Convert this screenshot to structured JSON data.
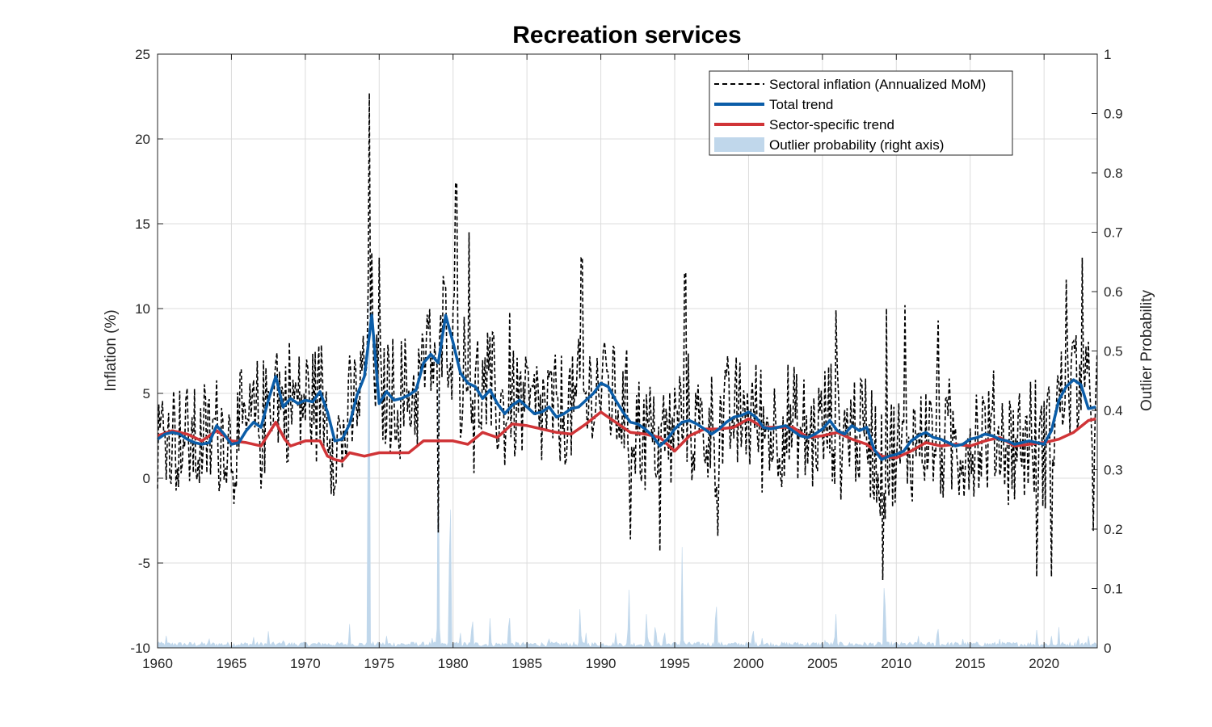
{
  "chart_data": {
    "type": "line",
    "title": "Recreation services",
    "ylabel": "Inflation (%)",
    "y2label": "Outlier Probability",
    "xlim": [
      1960,
      2023.6
    ],
    "ylim": [
      -10,
      25
    ],
    "y2lim": [
      0,
      1
    ],
    "xticks": [
      1960,
      1965,
      1970,
      1975,
      1980,
      1985,
      1990,
      1995,
      2000,
      2005,
      2010,
      2015,
      2020
    ],
    "yticks": [
      -10,
      -5,
      0,
      5,
      10,
      15,
      20,
      25
    ],
    "y2ticks": [
      0,
      0.1,
      0.2,
      0.3,
      0.4,
      0.5,
      0.6,
      0.7,
      0.8,
      0.9,
      1
    ],
    "grid": true,
    "legend_position": "top-right",
    "legend": [
      {
        "key": "sectoral",
        "label": "Sectoral inflation (Annualized MoM)"
      },
      {
        "key": "total",
        "label": "Total trend"
      },
      {
        "key": "sector",
        "label": "Sector-specific trend"
      },
      {
        "key": "outlier",
        "label": "Outlier probability (right axis)"
      }
    ],
    "colors": {
      "sectoral": "#000000",
      "total": "#0b5da8",
      "sector": "#d03437",
      "outlier": "#c0d7eb",
      "grid": "#dcdcdc",
      "axis": "#262626"
    },
    "series": [
      {
        "key": "total",
        "name": "Total trend",
        "x": [
          1960,
          1960.5,
          1961,
          1961.5,
          1962,
          1962.5,
          1963,
          1963.5,
          1964,
          1964.5,
          1965,
          1965.5,
          1966,
          1966.5,
          1967,
          1967.5,
          1968,
          1968.5,
          1969,
          1969.5,
          1970,
          1970.5,
          1971,
          1971.5,
          1972,
          1972.5,
          1973,
          1973.5,
          1974,
          1974.5,
          1975,
          1975.5,
          1976,
          1976.5,
          1977,
          1977.5,
          1978,
          1978.5,
          1979,
          1979.5,
          1980,
          1980.5,
          1981,
          1981.5,
          1982,
          1982.5,
          1983,
          1983.5,
          1984,
          1984.5,
          1985,
          1985.5,
          1986,
          1986.5,
          1987,
          1987.5,
          1988,
          1988.5,
          1989,
          1989.5,
          1990,
          1990.5,
          1991,
          1991.5,
          1992,
          1992.5,
          1993,
          1993.5,
          1994,
          1994.5,
          1995,
          1995.5,
          1996,
          1996.5,
          1997,
          1997.5,
          1998,
          1998.5,
          1999,
          1999.5,
          2000,
          2000.5,
          2001,
          2001.5,
          2002,
          2002.5,
          2003,
          2003.5,
          2004,
          2004.5,
          2005,
          2005.5,
          2006,
          2006.5,
          2007,
          2007.5,
          2008,
          2008.5,
          2009,
          2009.5,
          2010,
          2010.5,
          2011,
          2011.5,
          2012,
          2012.5,
          2013,
          2013.5,
          2014,
          2014.5,
          2015,
          2015.5,
          2016,
          2016.5,
          2017,
          2017.5,
          2018,
          2018.5,
          2019,
          2019.5,
          2020,
          2020.5,
          2021,
          2021.5,
          2022,
          2022.5,
          2023,
          2023.5
        ],
        "y": [
          2.3,
          2.6,
          2.7,
          2.6,
          2.3,
          2.1,
          2.0,
          2.1,
          3.1,
          2.6,
          2.0,
          2.1,
          2.8,
          3.3,
          3.0,
          4.6,
          6.0,
          4.2,
          4.7,
          4.4,
          4.6,
          4.5,
          5.1,
          3.9,
          2.2,
          2.3,
          3.2,
          4.9,
          6.0,
          9.6,
          4.4,
          5.1,
          4.6,
          4.7,
          4.9,
          5.2,
          6.8,
          7.3,
          6.8,
          9.6,
          8.0,
          6.2,
          5.6,
          5.4,
          4.7,
          5.2,
          4.4,
          3.8,
          4.3,
          4.6,
          4.2,
          3.8,
          3.9,
          4.2,
          3.6,
          3.8,
          4.1,
          4.2,
          4.6,
          5.0,
          5.6,
          5.4,
          4.6,
          3.9,
          3.3,
          3.2,
          2.9,
          2.5,
          1.9,
          2.3,
          2.9,
          3.3,
          3.4,
          3.2,
          2.9,
          2.6,
          2.9,
          3.3,
          3.6,
          3.7,
          3.9,
          3.6,
          3.0,
          2.9,
          3.0,
          3.1,
          2.8,
          2.5,
          2.4,
          2.6,
          2.9,
          3.4,
          2.8,
          2.6,
          3.1,
          2.8,
          3.0,
          1.7,
          1.1,
          1.3,
          1.4,
          1.6,
          2.2,
          2.5,
          2.7,
          2.4,
          2.3,
          2.1,
          1.9,
          2.0,
          2.3,
          2.4,
          2.6,
          2.5,
          2.3,
          2.2,
          2.0,
          2.1,
          2.2,
          2.1,
          2.0,
          2.8,
          4.6,
          5.4,
          5.8,
          5.5,
          4.1,
          4.2
        ]
      },
      {
        "key": "sector",
        "name": "Sector-specific trend",
        "x": [
          1960,
          1961,
          1962,
          1963,
          1964,
          1965,
          1966,
          1967,
          1968,
          1968.6,
          1969,
          1970,
          1971,
          1971.5,
          1972,
          1972.5,
          1973,
          1974,
          1975,
          1976,
          1977,
          1978,
          1979,
          1980,
          1981,
          1982,
          1983,
          1984,
          1985,
          1986,
          1987,
          1988,
          1989,
          1990,
          1991,
          1992,
          1993,
          1994,
          1995,
          1996,
          1997,
          1998,
          1999,
          2000,
          2001,
          2002,
          2003,
          2004,
          2005,
          2006,
          2007,
          2008,
          2009,
          2010,
          2011,
          2012,
          2013,
          2014,
          2015,
          2016,
          2017,
          2018,
          2019,
          2020,
          2021,
          2022,
          2023,
          2023.5
        ],
        "y": [
          2.5,
          2.8,
          2.6,
          2.2,
          2.8,
          2.2,
          2.1,
          1.9,
          3.3,
          2.3,
          1.9,
          2.2,
          2.2,
          1.3,
          1.1,
          1.0,
          1.5,
          1.3,
          1.5,
          1.5,
          1.5,
          2.2,
          2.2,
          2.2,
          2.0,
          2.7,
          2.4,
          3.2,
          3.1,
          2.9,
          2.7,
          2.6,
          3.2,
          3.9,
          3.3,
          2.7,
          2.6,
          2.4,
          1.6,
          2.5,
          2.9,
          2.9,
          3.0,
          3.5,
          3.0,
          3.0,
          3.0,
          2.4,
          2.5,
          2.7,
          2.3,
          2.0,
          1.3,
          1.2,
          1.6,
          2.1,
          1.9,
          2.0,
          1.9,
          2.2,
          2.4,
          1.9,
          2.0,
          2.1,
          2.3,
          2.7,
          3.4,
          3.5
        ]
      }
    ],
    "outlier_spikes": [
      {
        "x": 1960.1,
        "y": 0.012
      },
      {
        "x": 1960.6,
        "y": 0.025
      },
      {
        "x": 1961.2,
        "y": 0.012
      },
      {
        "x": 1963.5,
        "y": 0.015
      },
      {
        "x": 1966.5,
        "y": 0.018
      },
      {
        "x": 1967.5,
        "y": 0.028
      },
      {
        "x": 1968.5,
        "y": 0.012
      },
      {
        "x": 1971.2,
        "y": 0.012
      },
      {
        "x": 1973.0,
        "y": 0.04
      },
      {
        "x": 1974.3,
        "y": 0.93
      },
      {
        "x": 1975.5,
        "y": 0.02
      },
      {
        "x": 1977.3,
        "y": 0.015
      },
      {
        "x": 1978.6,
        "y": 0.02
      },
      {
        "x": 1979.0,
        "y": 0.44
      },
      {
        "x": 1979.8,
        "y": 0.37
      },
      {
        "x": 1980.5,
        "y": 0.025
      },
      {
        "x": 1981.3,
        "y": 0.07
      },
      {
        "x": 1982.5,
        "y": 0.05
      },
      {
        "x": 1983.8,
        "y": 0.08
      },
      {
        "x": 1986.5,
        "y": 0.015
      },
      {
        "x": 1988.6,
        "y": 0.08
      },
      {
        "x": 1989.0,
        "y": 0.025
      },
      {
        "x": 1991.0,
        "y": 0.025
      },
      {
        "x": 1991.9,
        "y": 0.12
      },
      {
        "x": 1993.1,
        "y": 0.07
      },
      {
        "x": 1993.7,
        "y": 0.055
      },
      {
        "x": 1994.3,
        "y": 0.04
      },
      {
        "x": 1995.5,
        "y": 0.17
      },
      {
        "x": 1997.8,
        "y": 0.11
      },
      {
        "x": 2000.3,
        "y": 0.045
      },
      {
        "x": 2000.9,
        "y": 0.02
      },
      {
        "x": 2003.3,
        "y": 0.015
      },
      {
        "x": 2005.2,
        "y": 0.02
      },
      {
        "x": 2005.9,
        "y": 0.07
      },
      {
        "x": 2009.2,
        "y": 0.16
      },
      {
        "x": 2011.5,
        "y": 0.02
      },
      {
        "x": 2012.8,
        "y": 0.05
      },
      {
        "x": 2014.5,
        "y": 0.015
      },
      {
        "x": 2017.0,
        "y": 0.015
      },
      {
        "x": 2019.5,
        "y": 0.03
      },
      {
        "x": 2020.5,
        "y": 0.02
      },
      {
        "x": 2021.0,
        "y": 0.035
      },
      {
        "x": 2022.3,
        "y": 0.025
      },
      {
        "x": 2023.0,
        "y": 0.02
      }
    ],
    "sectoral_spikes": [
      {
        "x": 1974.3,
        "y": 22.7
      },
      {
        "x": 1975.0,
        "y": 13.0
      },
      {
        "x": 1979.0,
        "y": -3.2
      },
      {
        "x": 1980.2,
        "y": 17.4
      },
      {
        "x": 1981.1,
        "y": 14.5
      },
      {
        "x": 1981.4,
        "y": 0.3
      },
      {
        "x": 1983.8,
        "y": 9.8
      },
      {
        "x": 1988.7,
        "y": 13.0
      },
      {
        "x": 1992.0,
        "y": -3.6
      },
      {
        "x": 1994.0,
        "y": -4.3
      },
      {
        "x": 1995.7,
        "y": 12.1
      },
      {
        "x": 1997.9,
        "y": -3.4
      },
      {
        "x": 2005.9,
        "y": 9.9
      },
      {
        "x": 2009.3,
        "y": 10.0
      },
      {
        "x": 2009.1,
        "y": -6.0
      },
      {
        "x": 2010.6,
        "y": 10.2
      },
      {
        "x": 2012.8,
        "y": 9.3
      },
      {
        "x": 2019.5,
        "y": -5.8
      },
      {
        "x": 2020.5,
        "y": -5.8
      },
      {
        "x": 2021.5,
        "y": 11.7
      },
      {
        "x": 2022.6,
        "y": 13.0
      },
      {
        "x": 2023.3,
        "y": -3.1
      }
    ]
  }
}
